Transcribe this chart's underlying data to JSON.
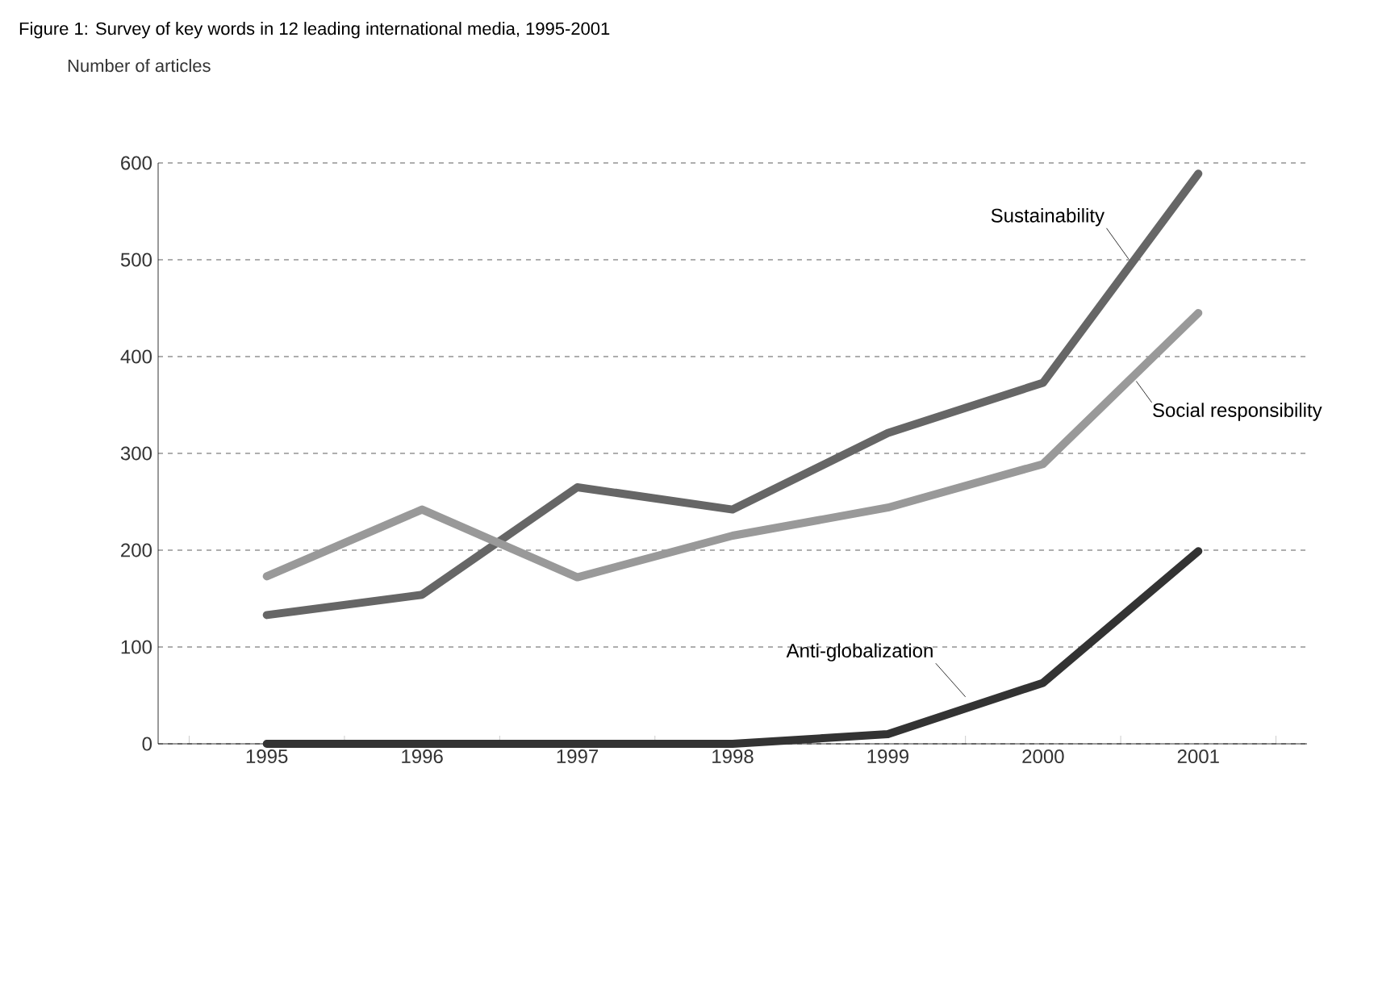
{
  "chart_data": {
    "type": "line",
    "title": "Figure 1: Survey of key words in 12 leading international media, 1995-2001",
    "ylabel": "Number of articles",
    "categories": [
      "1995",
      "1996",
      "1997",
      "1998",
      "1999",
      "2000",
      "2001"
    ],
    "series": [
      {
        "name": "Sustainability",
        "color": "#666666",
        "values": [
          133,
          154,
          265,
          242,
          321,
          373,
          589
        ]
      },
      {
        "name": "Social responsibility",
        "color": "#999999",
        "values": [
          173,
          242,
          172,
          215,
          244,
          289,
          445
        ]
      },
      {
        "name": "Anti-globalization",
        "color": "#333333",
        "values": [
          0,
          0,
          0,
          0,
          10,
          63,
          199
        ]
      }
    ],
    "ylim": [
      0,
      600
    ],
    "yticks": [
      0,
      100,
      200,
      300,
      400,
      500,
      600
    ],
    "grid": "y",
    "legend": false,
    "marker": "none",
    "line_style": "solid"
  }
}
